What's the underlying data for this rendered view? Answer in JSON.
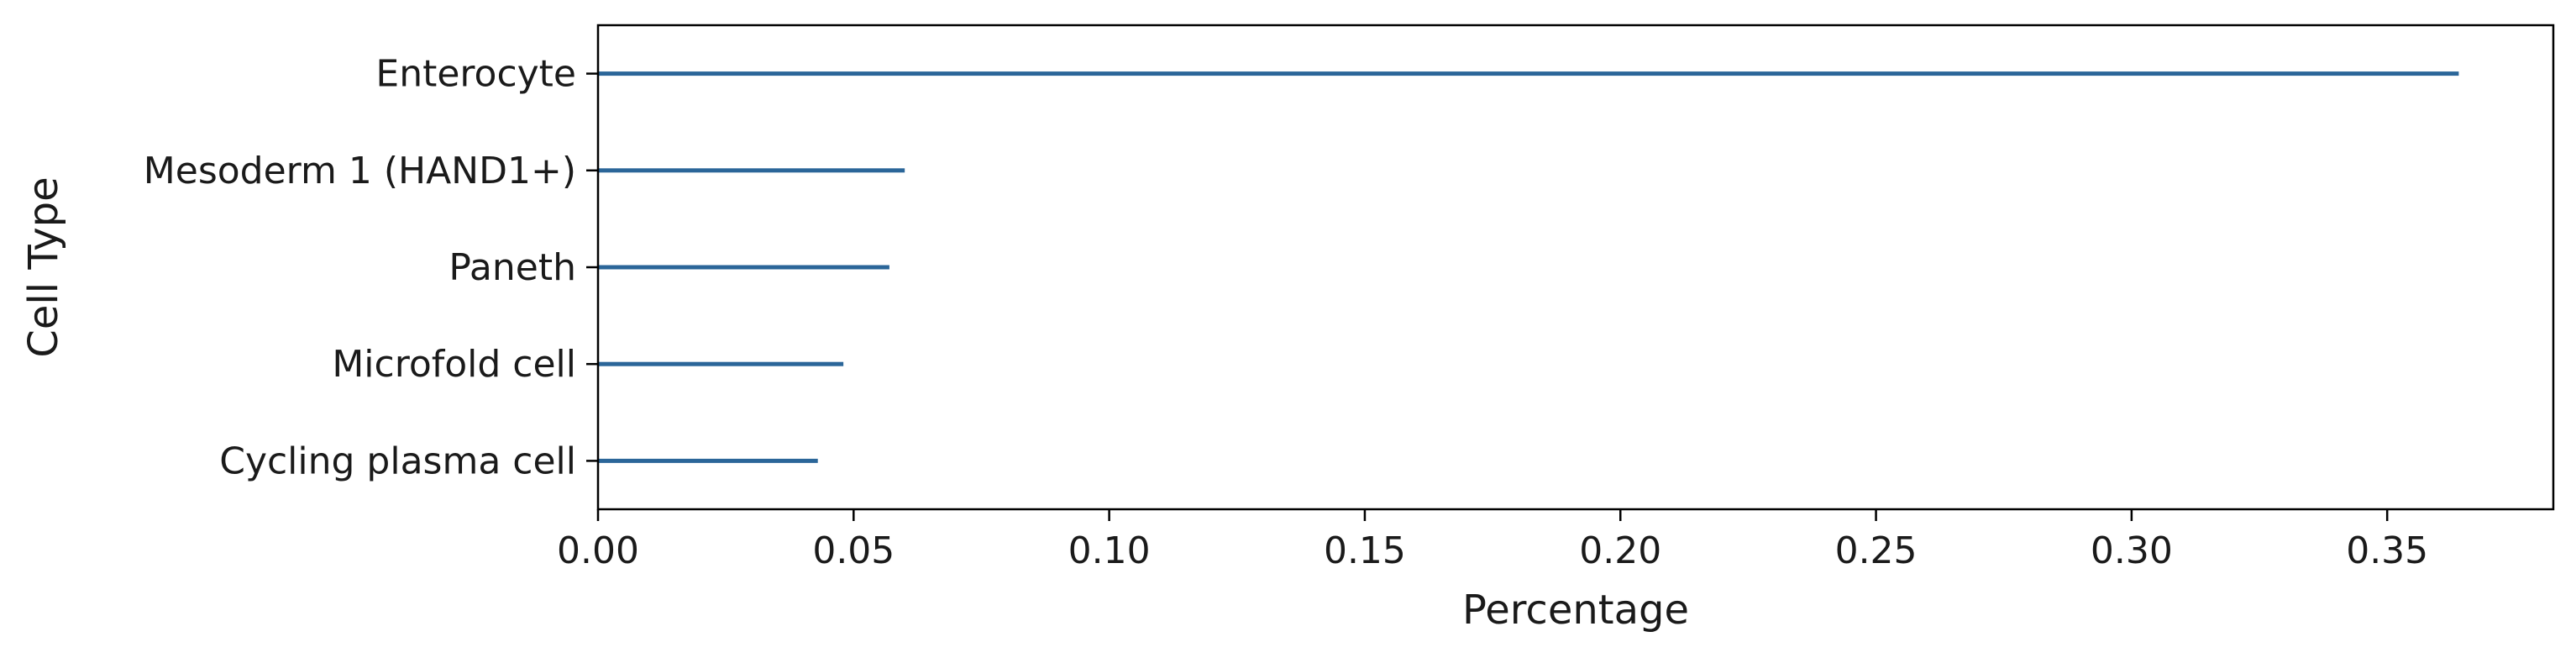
{
  "chart_data": {
    "type": "bar",
    "orientation": "horizontal",
    "title": "",
    "xlabel": "Percentage",
    "ylabel": "Cell Type",
    "categories": [
      "Enterocyte",
      "Mesoderm 1 (HAND1+)",
      "Paneth",
      "Microfold cell",
      "Cycling plasma cell"
    ],
    "values": [
      0.364,
      0.06,
      0.057,
      0.048,
      0.043
    ],
    "xlim": [
      0,
      0.3825
    ],
    "xticks": [
      "0.00",
      "0.05",
      "0.10",
      "0.15",
      "0.20",
      "0.25",
      "0.30",
      "0.35"
    ],
    "xtick_values": [
      0,
      0.05,
      0.1,
      0.15,
      0.2,
      0.25,
      0.3,
      0.35
    ],
    "grid": false,
    "legend": "none",
    "bar_color": "#2b6699"
  }
}
